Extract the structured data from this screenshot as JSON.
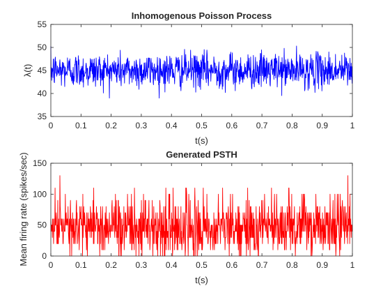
{
  "chart_data": [
    {
      "type": "line",
      "title": "Inhomogenous Poisson Process",
      "xlabel": "t(s)",
      "ylabel": "λ(t)",
      "xlim": [
        0,
        1
      ],
      "ylim": [
        35,
        55
      ],
      "xticks": [
        "0",
        "0.1",
        "0.2",
        "0.3",
        "0.4",
        "0.5",
        "0.6",
        "0.7",
        "0.8",
        "0.9",
        "1"
      ],
      "yticks": [
        "35",
        "40",
        "45",
        "50",
        "55"
      ],
      "grid": false,
      "series": [
        {
          "color": "#0000ff",
          "description": "noisy rate fluctuating around ~45 (range ≈ 39–50.5), sampled every 0.001 s",
          "x_start": 0,
          "x_end": 1,
          "n_points": 1000,
          "mean": 45,
          "std": 1.9,
          "min": 39,
          "max": 50.5
        }
      ]
    },
    {
      "type": "line",
      "title": "Generated PSTH",
      "xlabel": "t(s)",
      "ylabel": "Mean firing rate (spikes/sec)",
      "xlim": [
        0,
        1
      ],
      "ylim": [
        0,
        150
      ],
      "xticks": [
        "0",
        "0.1",
        "0.2",
        "0.3",
        "0.4",
        "0.5",
        "0.6",
        "0.7",
        "0.8",
        "0.9",
        "1"
      ],
      "yticks": [
        "0",
        "50",
        "100",
        "150"
      ],
      "grid": false,
      "series": [
        {
          "color": "#ff0000",
          "description": "PSTH quantized in steps of 10 spikes/sec, mostly 30–60, occasional peaks ~100–130",
          "x_start": 0,
          "x_end": 1,
          "n_points": 1000,
          "step": 10,
          "min": 0,
          "max": 130,
          "peaks": [
            {
              "x": 0.03,
              "y": 130
            },
            {
              "x": 0.985,
              "y": 130
            }
          ]
        }
      ]
    }
  ]
}
